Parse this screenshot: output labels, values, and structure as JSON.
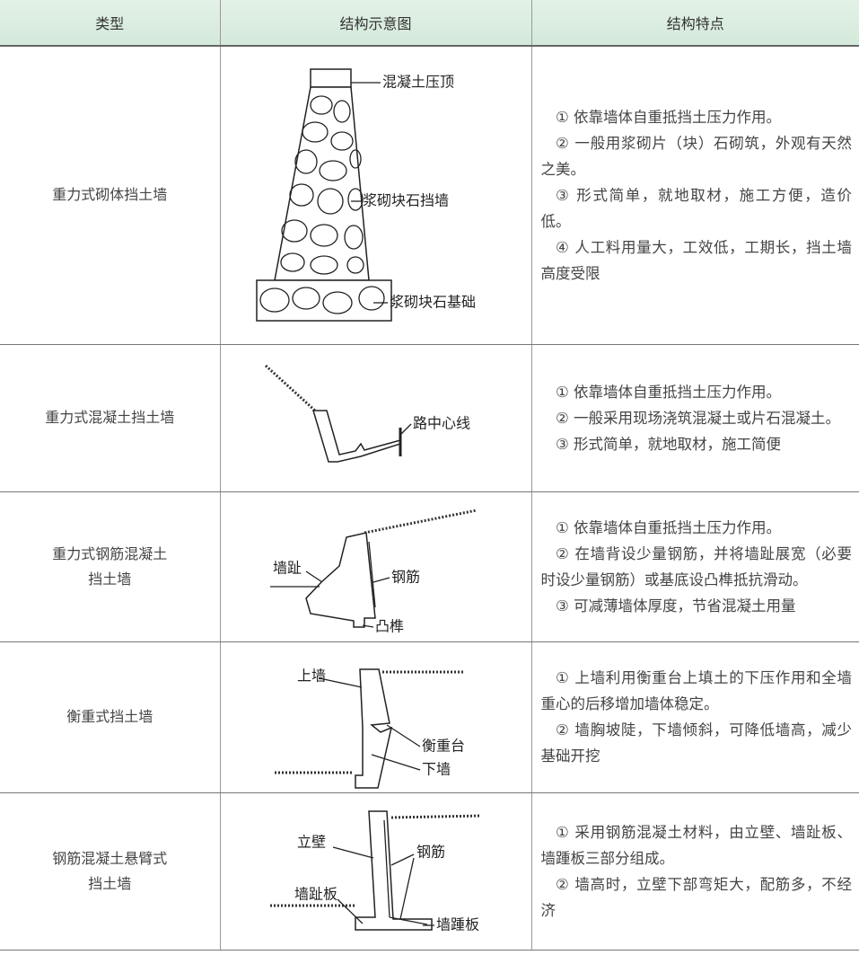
{
  "table": {
    "header": [
      "类型",
      "结构示意图",
      "结构特点"
    ],
    "rows": [
      {
        "type": [
          "重力式砌体挡土墙"
        ],
        "diagram_labels": [
          "混凝土压顶",
          "浆砌块石挡墙",
          "浆砌块石基础"
        ],
        "features": [
          "① 依靠墙体自重抵挡土压力作用。",
          "② 一般用浆砌片（块）石砌筑，外观有天然之美。",
          "③ 形式简单，就地取材，施工方便，造价低。",
          "④ 人工料用量大，工效低，工期长，挡土墙高度受限"
        ]
      },
      {
        "type": [
          "重力式混凝土挡土墙"
        ],
        "diagram_labels": [
          "路中心线"
        ],
        "features": [
          "① 依靠墙体自重抵挡土压力作用。",
          "② 一般采用现场浇筑混凝土或片石混凝土。",
          "③ 形式简单，就地取材，施工简便"
        ]
      },
      {
        "type": [
          "重力式钢筋混凝土",
          "挡土墙"
        ],
        "diagram_labels": [
          "墙趾",
          "钢筋",
          "凸榫"
        ],
        "features": [
          "① 依靠墙体自重抵挡土压力作用。",
          "② 在墙背设少量钢筋，并将墙趾展宽（必要时设少量钢筋）或基底设凸榫抵抗滑动。",
          "③ 可减薄墙体厚度，节省混凝土用量"
        ]
      },
      {
        "type": [
          "衡重式挡土墙"
        ],
        "diagram_labels": [
          "上墙",
          "衡重台",
          "下墙"
        ],
        "features": [
          "① 上墙利用衡重台上填土的下压作用和全墙重心的后移增加墙体稳定。",
          "② 墙胸坡陡，下墙倾斜，可降低墙高，减少基础开挖"
        ]
      },
      {
        "type": [
          "钢筋混凝土悬臂式",
          "挡土墙"
        ],
        "diagram_labels": [
          "立壁",
          "钢筋",
          "墙趾板",
          "墙踵板"
        ],
        "features": [
          "① 采用钢筋混凝土材料，由立壁、墙趾板、墙踵板三部分组成。",
          "② 墙高时，立壁下部弯矩大，配筋多，不经济"
        ]
      }
    ]
  }
}
